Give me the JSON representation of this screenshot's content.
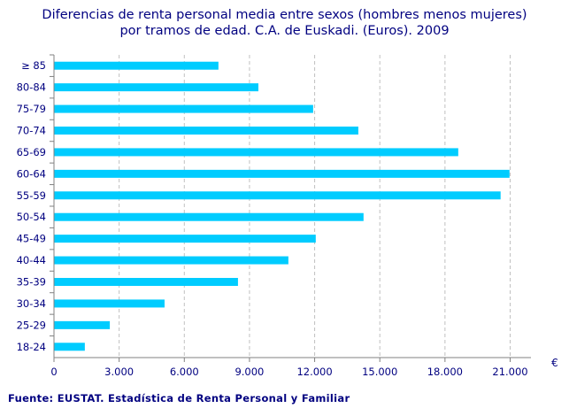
{
  "chart_data": {
    "type": "bar",
    "orientation": "horizontal",
    "title_line1": "Diferencias de renta personal media entre sexos (hombres menos mujeres)",
    "title_line2": "por tramos de edad. C.A. de Euskadi. (Euros). 2009",
    "xlabel": "€",
    "ylabel": "",
    "categories": [
      "≥ 85",
      "80-84",
      "75-79",
      "70-74",
      "65-69",
      "60-64",
      "55-59",
      "50-54",
      "45-49",
      "40-44",
      "35-39",
      "30-34",
      "25-29",
      "18-24"
    ],
    "values": [
      7550,
      9390,
      11910,
      13990,
      18590,
      20950,
      20540,
      14230,
      12030,
      10770,
      8450,
      5070,
      2550,
      1400
    ],
    "xlim": [
      0,
      22000
    ],
    "xticks": [
      0,
      3000,
      6000,
      9000,
      12000,
      15000,
      18000,
      21000
    ],
    "xtick_labels": [
      "0",
      "3.000",
      "6.000",
      "9.000",
      "12.000",
      "15.000",
      "18.000",
      "21.000"
    ],
    "grid": "vertical dashed",
    "bar_color": "#00CCFF",
    "text_color": "#000080",
    "source": "Fuente: EUSTAT. Estadística de Renta Personal y Familiar"
  }
}
